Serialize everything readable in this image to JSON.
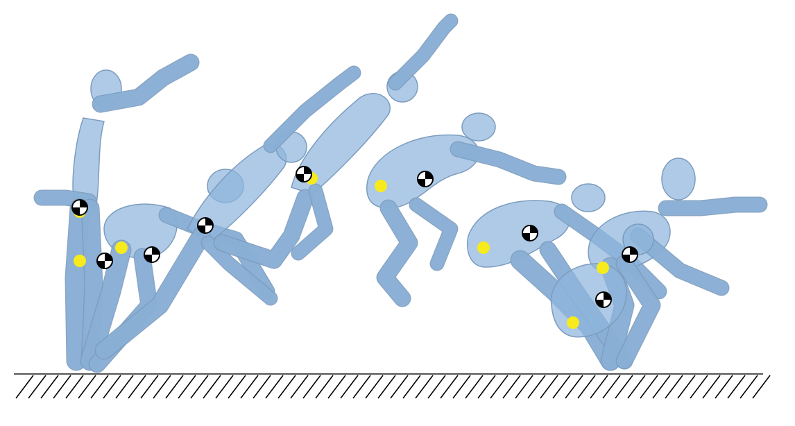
{
  "figure": {
    "type": "multi-pose motion sequence",
    "frames": 6,
    "figure_color": "#8fb6dc",
    "outline_color": "#7c9cbf",
    "marker_yellow": "#f7ea1d",
    "marker_com_colors": [
      "#000000",
      "#ffffff"
    ],
    "ground": {
      "hatch_color": "#000000",
      "line_color": "#555555"
    }
  }
}
